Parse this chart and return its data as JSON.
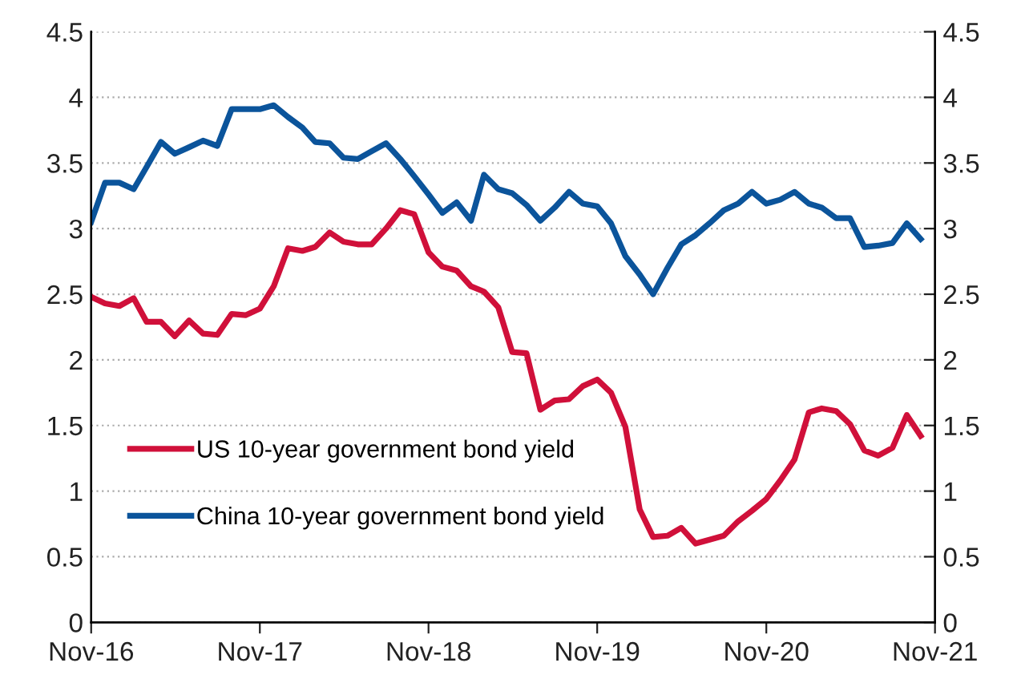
{
  "chart_data": {
    "type": "line",
    "x": [
      "2016-11",
      "2016-12",
      "2017-01",
      "2017-02",
      "2017-03",
      "2017-04",
      "2017-05",
      "2017-06",
      "2017-07",
      "2017-08",
      "2017-09",
      "2017-10",
      "2017-11",
      "2017-12",
      "2018-01",
      "2018-02",
      "2018-03",
      "2018-04",
      "2018-05",
      "2018-06",
      "2018-07",
      "2018-08",
      "2018-09",
      "2018-10",
      "2018-11",
      "2018-12",
      "2019-01",
      "2019-02",
      "2019-03",
      "2019-04",
      "2019-05",
      "2019-06",
      "2019-07",
      "2019-08",
      "2019-09",
      "2019-10",
      "2019-11",
      "2019-12",
      "2020-01",
      "2020-02",
      "2020-03",
      "2020-04",
      "2020-05",
      "2020-06",
      "2020-07",
      "2020-08",
      "2020-09",
      "2020-10",
      "2020-11",
      "2020-12",
      "2021-01",
      "2021-02",
      "2021-03",
      "2021-04",
      "2021-05",
      "2021-06",
      "2021-07",
      "2021-08",
      "2021-09",
      "2021-10"
    ],
    "series": [
      {
        "name": "US 10-year government bond yield",
        "color": "#d0103a",
        "values": [
          2.48,
          2.43,
          2.41,
          2.47,
          2.29,
          2.29,
          2.18,
          2.3,
          2.2,
          2.19,
          2.35,
          2.34,
          2.39,
          2.56,
          2.85,
          2.83,
          2.86,
          2.97,
          2.9,
          2.88,
          2.88,
          3.0,
          3.14,
          3.11,
          2.82,
          2.71,
          2.68,
          2.56,
          2.52,
          2.4,
          2.06,
          2.05,
          1.62,
          1.69,
          1.7,
          1.8,
          1.85,
          1.75,
          1.49,
          0.86,
          0.65,
          0.66,
          0.72,
          0.6,
          0.63,
          0.66,
          0.77,
          0.85,
          0.94,
          1.08,
          1.24,
          1.6,
          1.63,
          1.61,
          1.51,
          1.31,
          1.27,
          1.33,
          1.58,
          1.42
        ]
      },
      {
        "name": "China 10-year government bond yield",
        "color": "#0b549b",
        "values": [
          3.05,
          3.35,
          3.35,
          3.3,
          3.47,
          3.66,
          3.57,
          3.62,
          3.67,
          3.63,
          3.91,
          3.91,
          3.91,
          3.94,
          3.85,
          3.77,
          3.66,
          3.65,
          3.54,
          3.53,
          3.59,
          3.65,
          3.53,
          3.4,
          3.26,
          3.12,
          3.2,
          3.06,
          3.41,
          3.3,
          3.27,
          3.18,
          3.06,
          3.16,
          3.28,
          3.19,
          3.17,
          3.04,
          2.79,
          2.65,
          2.5,
          2.7,
          2.88,
          2.95,
          3.04,
          3.14,
          3.19,
          3.28,
          3.19,
          3.22,
          3.28,
          3.19,
          3.16,
          3.08,
          3.08,
          2.86,
          2.87,
          2.89,
          3.04,
          2.92
        ]
      }
    ],
    "xlim": [
      "2016-11",
      "2021-11"
    ],
    "xticks": [
      {
        "value": "2016-11",
        "label": "Nov-16"
      },
      {
        "value": "2017-11",
        "label": "Nov-17"
      },
      {
        "value": "2018-11",
        "label": "Nov-18"
      },
      {
        "value": "2019-11",
        "label": "Nov-19"
      },
      {
        "value": "2020-11",
        "label": "Nov-20"
      },
      {
        "value": "2021-11",
        "label": "Nov-21"
      }
    ],
    "ylim": [
      0,
      4.5
    ],
    "yticks": [
      0,
      0.5,
      1,
      1.5,
      2,
      2.5,
      3,
      3.5,
      4,
      4.5
    ],
    "y2lim": [
      0,
      4.5
    ],
    "y2ticks": [
      0,
      0.5,
      1,
      1.5,
      2,
      2.5,
      3,
      3.5,
      4,
      4.5
    ],
    "grid": "y",
    "legend": "lower left",
    "marker": "none",
    "line_style": "solid"
  }
}
